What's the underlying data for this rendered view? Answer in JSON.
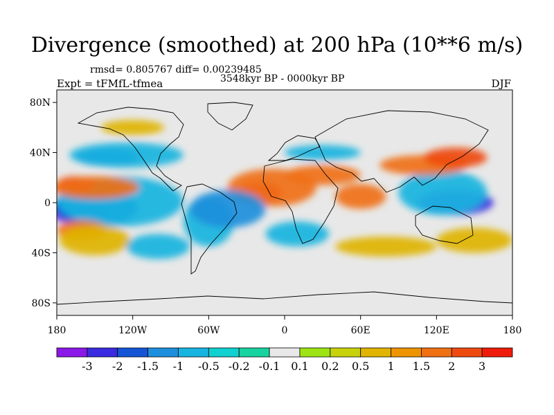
{
  "title": "Divergence (smoothed) at 200 hPa (10**6 m/s)",
  "stats": "rmsd= 0.805767 diff= 0.00239485",
  "period": "3548kyr BP - 0000kyr BP",
  "experiment": "Expt = tFMfL-tfmea",
  "season": "DJF",
  "map": {
    "lon_range": [
      -180,
      180
    ],
    "lat_range": [
      -90,
      90
    ],
    "lat_ticks": [
      {
        "v": 80,
        "label": "80N"
      },
      {
        "v": 40,
        "label": "40N"
      },
      {
        "v": 0,
        "label": "0"
      },
      {
        "v": -40,
        "label": "40S"
      },
      {
        "v": -80,
        "label": "80S"
      }
    ],
    "lon_ticks": [
      {
        "v": -180,
        "label": "180"
      },
      {
        "v": -120,
        "label": "120W"
      },
      {
        "v": -60,
        "label": "60W"
      },
      {
        "v": 0,
        "label": "0"
      },
      {
        "v": 60,
        "label": "60E"
      },
      {
        "v": 120,
        "label": "120E"
      },
      {
        "v": 180,
        "label": "180"
      }
    ],
    "background_color": "#e8e8e8"
  },
  "colorbar": {
    "colors": [
      "#8a18e6",
      "#3a2be0",
      "#1455d6",
      "#1e8fdc",
      "#18b4e0",
      "#10d0d0",
      "#17d3a0",
      "#e8e8e8",
      "#9ee414",
      "#c8d20a",
      "#e0b400",
      "#ee9400",
      "#f07014",
      "#ee4a10",
      "#ee1c0a"
    ],
    "labels": [
      "-3",
      "-2",
      "-1.5",
      "-1",
      "-0.5",
      "-0.2",
      "-0.1",
      "0.1",
      "0.2",
      "0.5",
      "1",
      "1.5",
      "2",
      "3"
    ]
  },
  "field_blobs": [
    {
      "lon": -162,
      "lat": -8,
      "rx": 24,
      "ry": 9,
      "level": 0
    },
    {
      "lon": -150,
      "lat": -4,
      "rx": 34,
      "ry": 15,
      "level": 2
    },
    {
      "lon": -130,
      "lat": 1,
      "rx": 50,
      "ry": 20,
      "level": 4
    },
    {
      "lon": -165,
      "lat": 15,
      "rx": 15,
      "ry": 6,
      "level": 14
    },
    {
      "lon": -150,
      "lat": 12,
      "rx": 35,
      "ry": 9,
      "level": 12
    },
    {
      "lon": -140,
      "lat": 36,
      "rx": 25,
      "ry": 7,
      "level": 2
    },
    {
      "lon": -125,
      "lat": 38,
      "rx": 45,
      "ry": 10,
      "level": 4
    },
    {
      "lon": -120,
      "lat": 60,
      "rx": 25,
      "ry": 6,
      "level": 10
    },
    {
      "lon": -160,
      "lat": -22,
      "rx": 20,
      "ry": 8,
      "level": 12
    },
    {
      "lon": -150,
      "lat": -30,
      "rx": 28,
      "ry": 12,
      "level": 10
    },
    {
      "lon": -20,
      "lat": 8,
      "rx": 18,
      "ry": 8,
      "level": 14
    },
    {
      "lon": -10,
      "lat": 12,
      "rx": 35,
      "ry": 15,
      "level": 12
    },
    {
      "lon": -60,
      "lat": -15,
      "rx": 20,
      "ry": 20,
      "level": 4
    },
    {
      "lon": -45,
      "lat": -5,
      "rx": 30,
      "ry": 15,
      "level": 3
    },
    {
      "lon": 10,
      "lat": -25,
      "rx": 25,
      "ry": 10,
      "level": 4
    },
    {
      "lon": 135,
      "lat": 0,
      "rx": 30,
      "ry": 10,
      "level": 1
    },
    {
      "lon": 125,
      "lat": 8,
      "rx": 35,
      "ry": 18,
      "level": 4
    },
    {
      "lon": 110,
      "lat": 30,
      "rx": 35,
      "ry": 8,
      "level": 12
    },
    {
      "lon": 135,
      "lat": 36,
      "rx": 25,
      "ry": 8,
      "level": 13
    },
    {
      "lon": 60,
      "lat": 5,
      "rx": 20,
      "ry": 10,
      "level": 12
    },
    {
      "lon": 150,
      "lat": -30,
      "rx": 30,
      "ry": 10,
      "level": 10
    },
    {
      "lon": 80,
      "lat": -35,
      "rx": 40,
      "ry": 8,
      "level": 10
    },
    {
      "lon": -100,
      "lat": -35,
      "rx": 25,
      "ry": 10,
      "level": 4
    },
    {
      "lon": 30,
      "lat": 40,
      "rx": 30,
      "ry": 6,
      "level": 4
    },
    {
      "lon": 30,
      "lat": 22,
      "rx": 30,
      "ry": 8,
      "level": 12
    }
  ]
}
